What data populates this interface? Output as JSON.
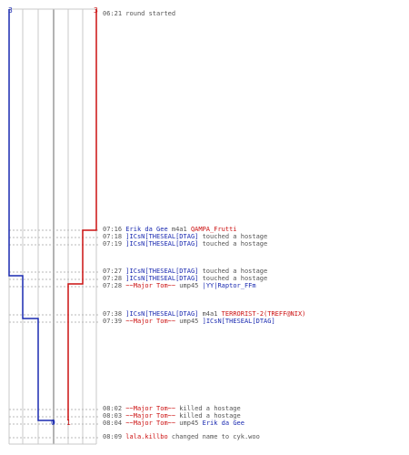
{
  "colors": {
    "ct": "#1a2ab0",
    "t": "#cc1111",
    "grid": "#c8c8c8",
    "text": "#555555"
  },
  "timeline": {
    "ct_start_count": "3",
    "t_start_count": "3",
    "ct_end_count": "0",
    "t_end_count": "1"
  },
  "events": [
    {
      "time": "06:21",
      "parts": [
        {
          "text": "round started",
          "team": "neutral"
        }
      ]
    },
    {
      "time": "07:16",
      "parts": [
        {
          "text": "Erik da Gee",
          "team": "ct"
        },
        {
          "text": " m4a1 ",
          "team": "neutral"
        },
        {
          "text": "QAMPA_Frutti",
          "team": "t"
        }
      ]
    },
    {
      "time": "07:18",
      "parts": [
        {
          "text": "]ICsN[THESEAL[DTAG]",
          "team": "ct"
        },
        {
          "text": " touched a hostage",
          "team": "neutral"
        }
      ]
    },
    {
      "time": "07:19",
      "parts": [
        {
          "text": "]ICsN[THESEAL[DTAG]",
          "team": "ct"
        },
        {
          "text": " touched a hostage",
          "team": "neutral"
        }
      ]
    },
    {
      "time": "07:27",
      "parts": [
        {
          "text": "]ICsN[THESEAL[DTAG]",
          "team": "ct"
        },
        {
          "text": " touched a hostage",
          "team": "neutral"
        }
      ]
    },
    {
      "time": "07:28",
      "parts": [
        {
          "text": "]ICsN[THESEAL[DTAG]",
          "team": "ct"
        },
        {
          "text": " touched a hostage",
          "team": "neutral"
        }
      ]
    },
    {
      "time": "07:28",
      "parts": [
        {
          "text": "~~Major Tom~~",
          "team": "t"
        },
        {
          "text": " ump45 ",
          "team": "neutral"
        },
        {
          "text": "|YY|Raptor_FFm",
          "team": "ct"
        }
      ]
    },
    {
      "time": "07:38",
      "parts": [
        {
          "text": "]ICsN[THESEAL[DTAG]",
          "team": "ct"
        },
        {
          "text": " m4a1 ",
          "team": "neutral"
        },
        {
          "text": "TERRORIST-2(TREFF@NIX)",
          "team": "t"
        }
      ]
    },
    {
      "time": "07:39",
      "parts": [
        {
          "text": "~~Major Tom~~",
          "team": "t"
        },
        {
          "text": " ump45 ",
          "team": "neutral"
        },
        {
          "text": "]ICsN[THESEAL[DTAG]",
          "team": "ct"
        }
      ]
    },
    {
      "time": "08:02",
      "parts": [
        {
          "text": "~~Major Tom~~",
          "team": "t"
        },
        {
          "text": " killed a hostage",
          "team": "neutral"
        }
      ]
    },
    {
      "time": "08:03",
      "parts": [
        {
          "text": "~~Major Tom~~",
          "team": "t"
        },
        {
          "text": " killed a hostage",
          "team": "neutral"
        }
      ]
    },
    {
      "time": "08:04",
      "parts": [
        {
          "text": "~~Major Tom~~",
          "team": "t"
        },
        {
          "text": " ump45 ",
          "team": "neutral"
        },
        {
          "text": "Erik da Gee",
          "team": "ct"
        }
      ]
    },
    {
      "time": "08:09",
      "parts": [
        {
          "text": "lala.killbo",
          "team": "t"
        },
        {
          "text": " changed name to cyk.woo",
          "team": "neutral"
        }
      ]
    }
  ]
}
